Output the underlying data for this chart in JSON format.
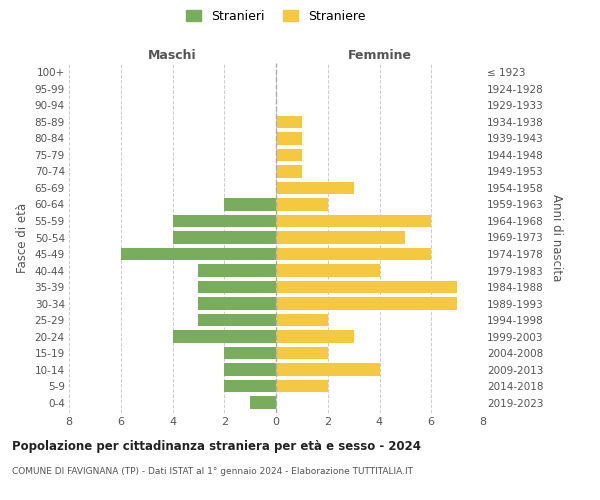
{
  "age_groups_bottom_to_top": [
    "0-4",
    "5-9",
    "10-14",
    "15-19",
    "20-24",
    "25-29",
    "30-34",
    "35-39",
    "40-44",
    "45-49",
    "50-54",
    "55-59",
    "60-64",
    "65-69",
    "70-74",
    "75-79",
    "80-84",
    "85-89",
    "90-94",
    "95-99",
    "100+"
  ],
  "birth_years_bottom_to_top": [
    "2019-2023",
    "2014-2018",
    "2009-2013",
    "2004-2008",
    "1999-2003",
    "1994-1998",
    "1989-1993",
    "1984-1988",
    "1979-1983",
    "1974-1978",
    "1969-1973",
    "1964-1968",
    "1959-1963",
    "1954-1958",
    "1949-1953",
    "1944-1948",
    "1939-1943",
    "1934-1938",
    "1929-1933",
    "1924-1928",
    "≤ 1923"
  ],
  "males_bottom_to_top": [
    1,
    2,
    2,
    2,
    4,
    3,
    3,
    3,
    3,
    6,
    4,
    4,
    2,
    0,
    0,
    0,
    0,
    0,
    0,
    0,
    0
  ],
  "females_bottom_to_top": [
    0,
    2,
    4,
    2,
    3,
    2,
    7,
    7,
    4,
    6,
    5,
    6,
    2,
    3,
    1,
    1,
    1,
    1,
    0,
    0,
    0
  ],
  "male_color": "#7aac5d",
  "female_color": "#f5c842",
  "background_color": "#ffffff",
  "grid_color": "#cccccc",
  "title": "Popolazione per cittadinanza straniera per età e sesso - 2024",
  "subtitle": "COMUNE DI FAVIGNANA (TP) - Dati ISTAT al 1° gennaio 2024 - Elaborazione TUTTITALIA.IT",
  "label_left": "Maschi",
  "label_right": "Femmine",
  "ylabel_left": "Fasce di età",
  "ylabel_right": "Anni di nascita",
  "legend_male": "Stranieri",
  "legend_female": "Straniere",
  "xlim": 8,
  "bar_height": 0.75
}
